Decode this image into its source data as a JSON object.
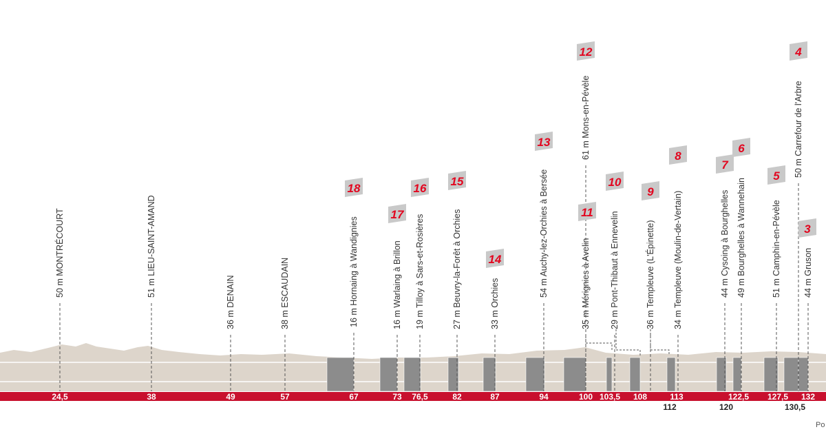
{
  "waypoints": [
    {
      "label": "50 m MONTRÉCOURT"
    },
    {
      "label": "51 m LIEU-SAINT-AMAND"
    },
    {
      "label": "36 m DENAIN"
    },
    {
      "label": "38 m ESCAUDAIN"
    },
    {
      "label": "16 m Hornaing à Wandignies"
    },
    {
      "label": "16 m Warlaing à Brillon"
    },
    {
      "label": "19 m Tilloy à Sars-et-Rosières"
    },
    {
      "label": "27 m Beuvry-la-Forêt à Orchies"
    },
    {
      "label": "33 m Orchies"
    },
    {
      "label": "54 m Auchy-lez-Orchies à Bersée"
    },
    {
      "label": "35 m Mérignies à Avelin"
    },
    {
      "label": "61 m Mons-en-Pévèle"
    },
    {
      "label": "29 m Pont-Thibaut à Ennevelin"
    },
    {
      "label": "36 m Templeuve (L'Épinette)"
    },
    {
      "label": "34 m Templeuve (Moulin-de-Vertain)"
    },
    {
      "label": "44 m Cysoing à Bourghelles"
    },
    {
      "label": "49 m Bourghelles à Wannehain"
    },
    {
      "label": "51 m Camphin-en-Pévèle"
    },
    {
      "label": "50 m Carrefour de l'Arbre"
    },
    {
      "label": "44 m Gruson"
    }
  ],
  "sectors": [
    "18",
    "17",
    "16",
    "15",
    "14",
    "13",
    "12",
    "11",
    "10",
    "9",
    "8",
    "7",
    "6",
    "5",
    "4",
    "3"
  ],
  "km_marks": [
    "24,5",
    "38",
    "49",
    "57",
    "67",
    "73",
    "76,5",
    "82",
    "87",
    "94",
    "100",
    "103,5",
    "108",
    "113",
    "122,5",
    "127,5",
    "132"
  ],
  "km_marks_lower": [
    "112",
    "120",
    "130,5"
  ],
  "footer": "Po"
}
